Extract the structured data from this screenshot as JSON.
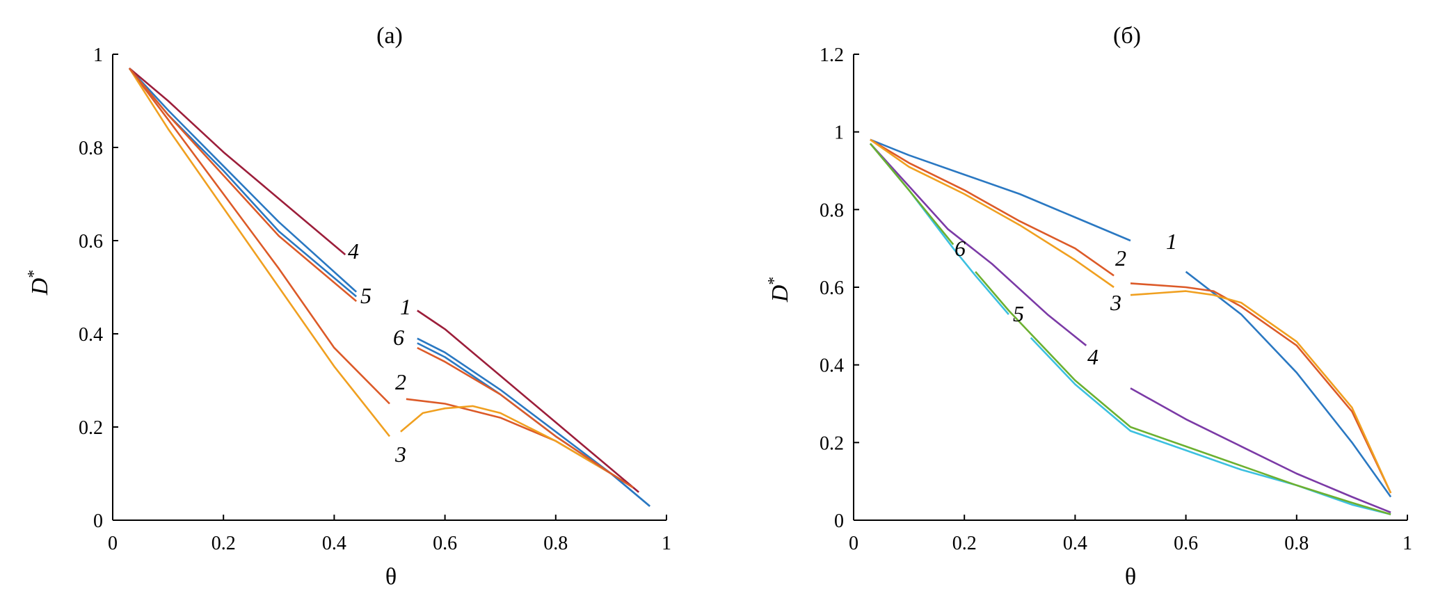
{
  "chart_data": [
    {
      "type": "line",
      "title": "(а)",
      "xlabel": "θ",
      "ylabel": "D*",
      "xlim": [
        0,
        1
      ],
      "ylim": [
        0,
        1
      ],
      "xticks": [
        "0",
        "0.2",
        "0.4",
        "0.6",
        "0.8",
        "1"
      ],
      "yticks": [
        "0",
        "0.2",
        "0.4",
        "0.6",
        "0.8",
        "1"
      ],
      "grid": false,
      "series": [
        {
          "name": "1",
          "color": "#2a78c2",
          "points": [
            [
              0.03,
              0.97
            ],
            [
              0.1,
              0.88
            ],
            [
              0.2,
              0.76
            ],
            [
              0.3,
              0.64
            ],
            [
              0.44,
              0.49
            ],
            [
              0.55,
              0.39
            ],
            [
              0.6,
              0.36
            ],
            [
              0.7,
              0.28
            ],
            [
              0.8,
              0.19
            ],
            [
              0.9,
              0.1
            ],
            [
              0.97,
              0.03
            ]
          ],
          "gap": [
            0.44,
            0.55
          ]
        },
        {
          "name": "2",
          "color": "#dc5a28",
          "points": [
            [
              0.03,
              0.97
            ],
            [
              0.1,
              0.86
            ],
            [
              0.2,
              0.7
            ],
            [
              0.3,
              0.54
            ],
            [
              0.4,
              0.37
            ],
            [
              0.5,
              0.25
            ],
            [
              0.53,
              0.26
            ],
            [
              0.6,
              0.25
            ],
            [
              0.7,
              0.22
            ],
            [
              0.8,
              0.17
            ],
            [
              0.9,
              0.1
            ],
            [
              0.94,
              0.07
            ]
          ],
          "gap": [
            0.5,
            0.53
          ]
        },
        {
          "name": "3",
          "color": "#f0a020",
          "points": [
            [
              0.03,
              0.97
            ],
            [
              0.1,
              0.84
            ],
            [
              0.2,
              0.67
            ],
            [
              0.3,
              0.5
            ],
            [
              0.4,
              0.33
            ],
            [
              0.5,
              0.18
            ],
            [
              0.52,
              0.19
            ],
            [
              0.56,
              0.23
            ],
            [
              0.6,
              0.24
            ],
            [
              0.65,
              0.245
            ],
            [
              0.7,
              0.23
            ],
            [
              0.8,
              0.17
            ],
            [
              0.9,
              0.1
            ],
            [
              0.94,
              0.07
            ]
          ],
          "gap": [
            0.5,
            0.52
          ]
        },
        {
          "name": "4",
          "color": "#9c1e3a",
          "points": [
            [
              0.03,
              0.97
            ],
            [
              0.1,
              0.9
            ],
            [
              0.2,
              0.79
            ],
            [
              0.3,
              0.69
            ],
            [
              0.42,
              0.57
            ],
            [
              0.55,
              0.45
            ],
            [
              0.6,
              0.41
            ],
            [
              0.7,
              0.31
            ],
            [
              0.8,
              0.21
            ],
            [
              0.9,
              0.11
            ],
            [
              0.95,
              0.06
            ]
          ],
          "gap": [
            0.42,
            0.46
          ]
        },
        {
          "name": "5",
          "color": "#2a78c2",
          "points": [
            [
              0.03,
              0.97
            ],
            [
              0.1,
              0.87
            ],
            [
              0.2,
              0.75
            ],
            [
              0.3,
              0.62
            ],
            [
              0.44,
              0.48
            ],
            [
              0.55,
              0.38
            ],
            [
              0.6,
              0.35
            ],
            [
              0.7,
              0.27
            ],
            [
              0.8,
              0.18
            ],
            [
              0.9,
              0.1
            ],
            [
              0.97,
              0.03
            ]
          ],
          "gap": [
            0.44,
            0.55
          ]
        },
        {
          "name": "6",
          "color": "#dc5a28",
          "points": [
            [
              0.03,
              0.97
            ],
            [
              0.1,
              0.87
            ],
            [
              0.2,
              0.74
            ],
            [
              0.3,
              0.61
            ],
            [
              0.44,
              0.47
            ],
            [
              0.55,
              0.37
            ],
            [
              0.6,
              0.34
            ],
            [
              0.7,
              0.27
            ],
            [
              0.8,
              0.18
            ],
            [
              0.9,
              0.1
            ],
            [
              0.94,
              0.07
            ]
          ],
          "gap": [
            0.44,
            0.55
          ]
        }
      ]
    },
    {
      "type": "line",
      "title": "(б)",
      "xlabel": "θ",
      "ylabel": "D*",
      "xlim": [
        0,
        1
      ],
      "ylim": [
        0,
        1.2
      ],
      "xticks": [
        "0",
        "0.2",
        "0.4",
        "0.6",
        "0.8",
        "1"
      ],
      "yticks": [
        "0",
        "0.2",
        "0.4",
        "0.6",
        "0.8",
        "1",
        "1.2"
      ],
      "grid": false,
      "series": [
        {
          "name": "1",
          "color": "#2a78c2",
          "points": [
            [
              0.03,
              0.98
            ],
            [
              0.1,
              0.94
            ],
            [
              0.2,
              0.89
            ],
            [
              0.3,
              0.84
            ],
            [
              0.4,
              0.78
            ],
            [
              0.5,
              0.72
            ],
            [
              0.6,
              0.64
            ],
            [
              0.7,
              0.53
            ],
            [
              0.8,
              0.38
            ],
            [
              0.9,
              0.2
            ],
            [
              0.97,
              0.06
            ]
          ],
          "gap": [
            0.5,
            0.57
          ]
        },
        {
          "name": "2",
          "color": "#dc5a28",
          "points": [
            [
              0.03,
              0.98
            ],
            [
              0.1,
              0.92
            ],
            [
              0.2,
              0.85
            ],
            [
              0.3,
              0.77
            ],
            [
              0.4,
              0.7
            ],
            [
              0.47,
              0.63
            ],
            [
              0.5,
              0.61
            ],
            [
              0.6,
              0.6
            ],
            [
              0.65,
              0.59
            ],
            [
              0.7,
              0.55
            ],
            [
              0.8,
              0.45
            ],
            [
              0.9,
              0.28
            ],
            [
              0.97,
              0.07
            ]
          ],
          "gap": [
            0.47,
            0.5
          ]
        },
        {
          "name": "3",
          "color": "#f0a020",
          "points": [
            [
              0.03,
              0.98
            ],
            [
              0.1,
              0.91
            ],
            [
              0.2,
              0.84
            ],
            [
              0.3,
              0.76
            ],
            [
              0.4,
              0.67
            ],
            [
              0.47,
              0.6
            ],
            [
              0.5,
              0.58
            ],
            [
              0.6,
              0.59
            ],
            [
              0.65,
              0.58
            ],
            [
              0.7,
              0.56
            ],
            [
              0.8,
              0.46
            ],
            [
              0.9,
              0.29
            ],
            [
              0.97,
              0.07
            ]
          ],
          "gap": [
            0.47,
            0.5
          ]
        },
        {
          "name": "4",
          "color": "#7b3aa6",
          "points": [
            [
              0.03,
              0.97
            ],
            [
              0.1,
              0.86
            ],
            [
              0.17,
              0.75
            ],
            [
              0.25,
              0.66
            ],
            [
              0.35,
              0.53
            ],
            [
              0.42,
              0.45
            ],
            [
              0.5,
              0.34
            ],
            [
              0.6,
              0.26
            ],
            [
              0.7,
              0.19
            ],
            [
              0.8,
              0.12
            ],
            [
              0.9,
              0.06
            ],
            [
              0.97,
              0.02
            ]
          ],
          "gap": [
            0.42,
            0.45
          ]
        },
        {
          "name": "5",
          "color": "#3cc0e0",
          "points": [
            [
              0.03,
              0.97
            ],
            [
              0.1,
              0.85
            ],
            [
              0.18,
              0.7
            ],
            [
              0.22,
              0.63
            ],
            [
              0.28,
              0.53
            ],
            [
              0.32,
              0.47
            ],
            [
              0.4,
              0.35
            ],
            [
              0.5,
              0.23
            ],
            [
              0.6,
              0.18
            ],
            [
              0.7,
              0.13
            ],
            [
              0.8,
              0.09
            ],
            [
              0.9,
              0.04
            ],
            [
              0.97,
              0.015
            ]
          ],
          "gap": [
            0.28,
            0.32
          ]
        },
        {
          "name": "6",
          "color": "#6cb030",
          "points": [
            [
              0.03,
              0.97
            ],
            [
              0.1,
              0.85
            ],
            [
              0.18,
              0.71
            ],
            [
              0.22,
              0.64
            ],
            [
              0.28,
              0.54
            ],
            [
              0.32,
              0.48
            ],
            [
              0.4,
              0.36
            ],
            [
              0.5,
              0.24
            ],
            [
              0.6,
              0.19
            ],
            [
              0.7,
              0.14
            ],
            [
              0.8,
              0.09
            ],
            [
              0.9,
              0.045
            ],
            [
              0.97,
              0.015
            ]
          ],
          "gap": [
            0.18,
            0.22
          ]
        }
      ]
    }
  ],
  "panel_a": {
    "title": "(а)",
    "xlabel": "θ",
    "ylabel_main": "D",
    "ylabel_sup": "*",
    "curve_labels": [
      "1",
      "2",
      "3",
      "4",
      "5",
      "6"
    ]
  },
  "panel_b": {
    "title": "(б)",
    "xlabel": "θ",
    "ylabel_main": "D",
    "ylabel_sup": "*",
    "curve_labels": [
      "1",
      "2",
      "3",
      "4",
      "5",
      "6"
    ]
  }
}
